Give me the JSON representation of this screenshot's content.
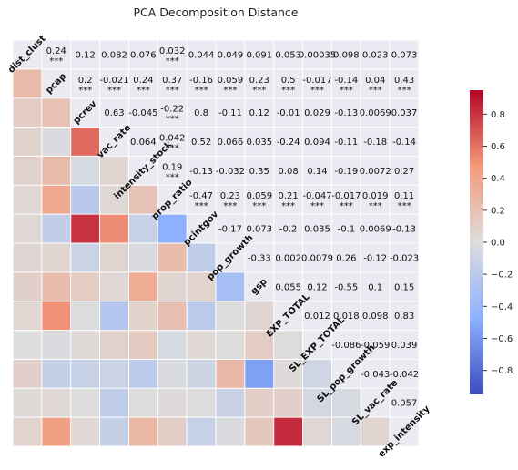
{
  "chart_data": {
    "type": "heatmap",
    "title": "PCA Decomposition Distance",
    "variables": [
      "dist_clust",
      "pcap",
      "pcrev",
      "vac_rate",
      "intensity_stock",
      "prop_ratio",
      "pcintgov",
      "pop_growth",
      "gsp",
      "EXP_TOTAL",
      "SL_EXP_TOTAL",
      "SL_pop_growth",
      "SL_vac_rate",
      "exp_intensity"
    ],
    "upper_cells": [
      {
        "row": 0,
        "col": 1,
        "value": "0.24",
        "sig": "***"
      },
      {
        "row": 0,
        "col": 2,
        "value": "0.12",
        "sig": ""
      },
      {
        "row": 0,
        "col": 3,
        "value": "0.082",
        "sig": ""
      },
      {
        "row": 0,
        "col": 4,
        "value": "0.076",
        "sig": ""
      },
      {
        "row": 0,
        "col": 5,
        "value": "0.032",
        "sig": "***"
      },
      {
        "row": 0,
        "col": 6,
        "value": "0.044",
        "sig": ""
      },
      {
        "row": 0,
        "col": 7,
        "value": "0.049",
        "sig": ""
      },
      {
        "row": 0,
        "col": 8,
        "value": "0.091",
        "sig": ""
      },
      {
        "row": 0,
        "col": 9,
        "value": "0.053",
        "sig": ""
      },
      {
        "row": 0,
        "col": 10,
        "value": "0.00035",
        "sig": ""
      },
      {
        "row": 0,
        "col": 11,
        "value": "0.098",
        "sig": ""
      },
      {
        "row": 0,
        "col": 12,
        "value": "0.023",
        "sig": ""
      },
      {
        "row": 0,
        "col": 13,
        "value": "0.073",
        "sig": ""
      },
      {
        "row": 1,
        "col": 2,
        "value": "0.2",
        "sig": "***"
      },
      {
        "row": 1,
        "col": 3,
        "value": "-0.021",
        "sig": "***"
      },
      {
        "row": 1,
        "col": 4,
        "value": "0.24",
        "sig": "***"
      },
      {
        "row": 1,
        "col": 5,
        "value": "0.37",
        "sig": "***"
      },
      {
        "row": 1,
        "col": 6,
        "value": "-0.16",
        "sig": "***"
      },
      {
        "row": 1,
        "col": 7,
        "value": "0.059",
        "sig": "***"
      },
      {
        "row": 1,
        "col": 8,
        "value": "0.23",
        "sig": "***"
      },
      {
        "row": 1,
        "col": 9,
        "value": "0.5",
        "sig": "***"
      },
      {
        "row": 1,
        "col": 10,
        "value": "-0.017",
        "sig": "***"
      },
      {
        "row": 1,
        "col": 11,
        "value": "-0.14",
        "sig": "***"
      },
      {
        "row": 1,
        "col": 12,
        "value": "0.04",
        "sig": "***"
      },
      {
        "row": 1,
        "col": 13,
        "value": "0.43",
        "sig": "***"
      },
      {
        "row": 2,
        "col": 3,
        "value": "0.63",
        "sig": ""
      },
      {
        "row": 2,
        "col": 4,
        "value": "-0.045",
        "sig": ""
      },
      {
        "row": 2,
        "col": 5,
        "value": "-0.22",
        "sig": "***"
      },
      {
        "row": 2,
        "col": 6,
        "value": "0.8",
        "sig": ""
      },
      {
        "row": 2,
        "col": 7,
        "value": "-0.11",
        "sig": ""
      },
      {
        "row": 2,
        "col": 8,
        "value": "0.12",
        "sig": ""
      },
      {
        "row": 2,
        "col": 9,
        "value": "-0.01",
        "sig": ""
      },
      {
        "row": 2,
        "col": 10,
        "value": "0.029",
        "sig": ""
      },
      {
        "row": 2,
        "col": 11,
        "value": "-0.13",
        "sig": ""
      },
      {
        "row": 2,
        "col": 12,
        "value": "0.0069",
        "sig": ""
      },
      {
        "row": 2,
        "col": 13,
        "value": "0.037",
        "sig": ""
      },
      {
        "row": 3,
        "col": 4,
        "value": "0.064",
        "sig": ""
      },
      {
        "row": 3,
        "col": 5,
        "value": "0.042",
        "sig": "***"
      },
      {
        "row": 3,
        "col": 6,
        "value": "0.52",
        "sig": ""
      },
      {
        "row": 3,
        "col": 7,
        "value": "0.066",
        "sig": ""
      },
      {
        "row": 3,
        "col": 8,
        "value": "0.035",
        "sig": ""
      },
      {
        "row": 3,
        "col": 9,
        "value": "-0.24",
        "sig": ""
      },
      {
        "row": 3,
        "col": 10,
        "value": "0.094",
        "sig": ""
      },
      {
        "row": 3,
        "col": 11,
        "value": "-0.11",
        "sig": ""
      },
      {
        "row": 3,
        "col": 12,
        "value": "-0.18",
        "sig": ""
      },
      {
        "row": 3,
        "col": 13,
        "value": "-0.14",
        "sig": ""
      },
      {
        "row": 4,
        "col": 5,
        "value": "0.19",
        "sig": "***"
      },
      {
        "row": 4,
        "col": 6,
        "value": "-0.13",
        "sig": ""
      },
      {
        "row": 4,
        "col": 7,
        "value": "-0.032",
        "sig": ""
      },
      {
        "row": 4,
        "col": 8,
        "value": "0.35",
        "sig": ""
      },
      {
        "row": 4,
        "col": 9,
        "value": "0.08",
        "sig": ""
      },
      {
        "row": 4,
        "col": 10,
        "value": "0.14",
        "sig": ""
      },
      {
        "row": 4,
        "col": 11,
        "value": "-0.19",
        "sig": ""
      },
      {
        "row": 4,
        "col": 12,
        "value": "0.0072",
        "sig": ""
      },
      {
        "row": 4,
        "col": 13,
        "value": "0.27",
        "sig": ""
      },
      {
        "row": 5,
        "col": 6,
        "value": "-0.47",
        "sig": "***"
      },
      {
        "row": 5,
        "col": 7,
        "value": "0.23",
        "sig": "***"
      },
      {
        "row": 5,
        "col": 8,
        "value": "0.059",
        "sig": "***"
      },
      {
        "row": 5,
        "col": 9,
        "value": "0.21",
        "sig": "***"
      },
      {
        "row": 5,
        "col": 10,
        "value": "-0.047",
        "sig": "***"
      },
      {
        "row": 5,
        "col": 11,
        "value": "-0.017",
        "sig": "***"
      },
      {
        "row": 5,
        "col": 12,
        "value": "0.019",
        "sig": "***"
      },
      {
        "row": 5,
        "col": 13,
        "value": "0.11",
        "sig": "***"
      },
      {
        "row": 6,
        "col": 7,
        "value": "-0.17",
        "sig": ""
      },
      {
        "row": 6,
        "col": 8,
        "value": "0.073",
        "sig": ""
      },
      {
        "row": 6,
        "col": 9,
        "value": "-0.2",
        "sig": ""
      },
      {
        "row": 6,
        "col": 10,
        "value": "0.035",
        "sig": ""
      },
      {
        "row": 6,
        "col": 11,
        "value": "-0.1",
        "sig": ""
      },
      {
        "row": 6,
        "col": 12,
        "value": "0.0069",
        "sig": ""
      },
      {
        "row": 6,
        "col": 13,
        "value": "-0.13",
        "sig": ""
      },
      {
        "row": 7,
        "col": 8,
        "value": "-0.33",
        "sig": ""
      },
      {
        "row": 7,
        "col": 9,
        "value": "0.002",
        "sig": ""
      },
      {
        "row": 7,
        "col": 10,
        "value": "0.0079",
        "sig": ""
      },
      {
        "row": 7,
        "col": 11,
        "value": "0.26",
        "sig": ""
      },
      {
        "row": 7,
        "col": 12,
        "value": "-0.12",
        "sig": ""
      },
      {
        "row": 7,
        "col": 13,
        "value": "-0.023",
        "sig": ""
      },
      {
        "row": 8,
        "col": 9,
        "value": "0.055",
        "sig": ""
      },
      {
        "row": 8,
        "col": 10,
        "value": "0.12",
        "sig": ""
      },
      {
        "row": 8,
        "col": 11,
        "value": "-0.55",
        "sig": ""
      },
      {
        "row": 8,
        "col": 12,
        "value": "0.1",
        "sig": ""
      },
      {
        "row": 8,
        "col": 13,
        "value": "0.15",
        "sig": ""
      },
      {
        "row": 9,
        "col": 10,
        "value": "0.012",
        "sig": ""
      },
      {
        "row": 9,
        "col": 11,
        "value": "0.018",
        "sig": ""
      },
      {
        "row": 9,
        "col": 12,
        "value": "0.098",
        "sig": ""
      },
      {
        "row": 9,
        "col": 13,
        "value": "0.83",
        "sig": ""
      },
      {
        "row": 10,
        "col": 11,
        "value": "-0.086",
        "sig": ""
      },
      {
        "row": 10,
        "col": 12,
        "value": "-0.059",
        "sig": ""
      },
      {
        "row": 10,
        "col": 13,
        "value": "0.039",
        "sig": ""
      },
      {
        "row": 11,
        "col": 12,
        "value": "-0.043",
        "sig": ""
      },
      {
        "row": 11,
        "col": 13,
        "value": "-0.042",
        "sig": ""
      },
      {
        "row": 12,
        "col": 13,
        "value": "0.057",
        "sig": ""
      }
    ],
    "colorbar": {
      "min": -0.95,
      "max": 0.95,
      "ticks": [
        "0.8",
        "0.6",
        "0.4",
        "0.2",
        "0.0",
        "−0.2",
        "−0.4",
        "−0.6",
        "−0.8"
      ],
      "tick_values": [
        0.8,
        0.6,
        0.4,
        0.2,
        0.0,
        -0.2,
        -0.4,
        -0.6,
        -0.8
      ],
      "colormap": "coolwarm"
    },
    "grid": true,
    "colors": {
      "background": "#eaeaf2",
      "low": "#3b4cc0",
      "mid": "#dddddd",
      "high": "#b40426"
    }
  }
}
